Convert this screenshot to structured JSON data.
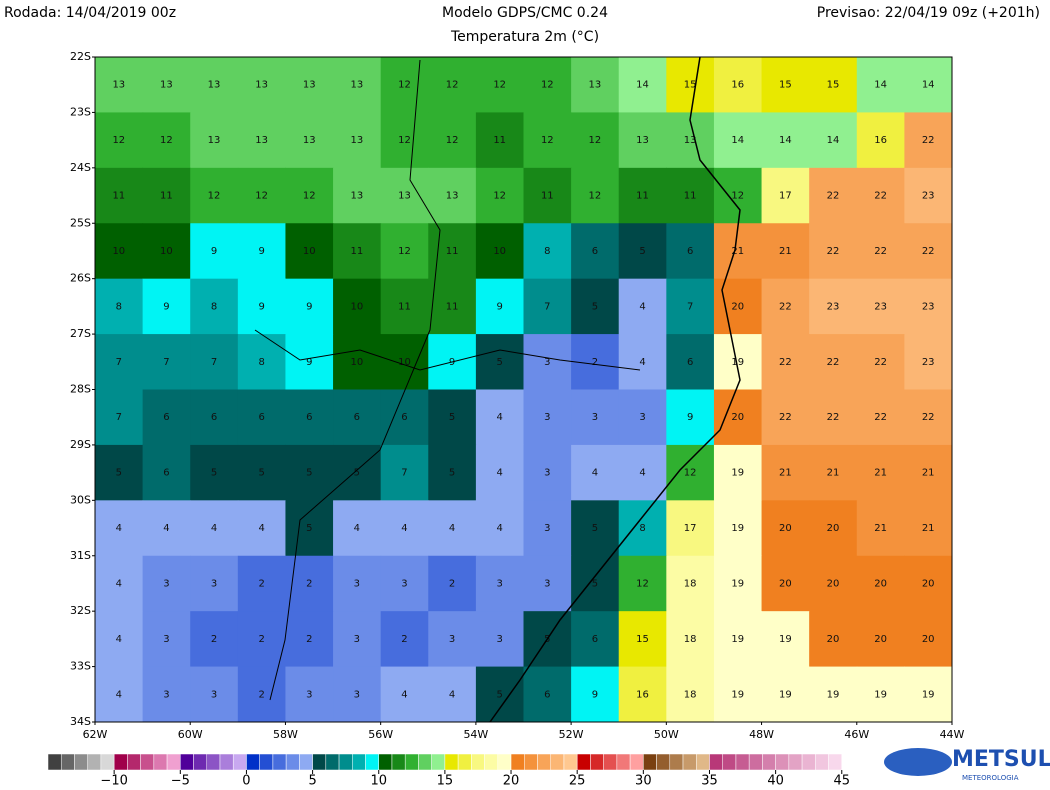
{
  "header_left": "Rodada: 14/04/2019 00z",
  "title": "Modelo GDPS/CMC 0.24",
  "subtitle": "Temperatura 2m (°C)",
  "header_right": "Previsao: 22/04/19 09z (+201h)",
  "lat_labels": [
    "22S",
    "23S",
    "24S",
    "25S",
    "26S",
    "27S",
    "28S",
    "29S",
    "30S",
    "31S",
    "32S",
    "33S",
    "34S"
  ],
  "lon_labels": [
    "62W",
    "60W",
    "58W",
    "56W",
    "54W",
    "52W",
    "50W",
    "48W",
    "46W",
    "44W"
  ],
  "grid": {
    "rows": [
      [
        13,
        13,
        13,
        13,
        13,
        13,
        12,
        12,
        12,
        12,
        13,
        14,
        15,
        16,
        15,
        15,
        14,
        14
      ],
      [
        12,
        12,
        13,
        13,
        13,
        13,
        12,
        12,
        11,
        12,
        12,
        13,
        13,
        14,
        14,
        14,
        16,
        22
      ],
      [
        11,
        11,
        12,
        12,
        12,
        13,
        13,
        13,
        12,
        11,
        12,
        11,
        11,
        12,
        17,
        22,
        22,
        23
      ],
      [
        10,
        10,
        9,
        9,
        10,
        11,
        12,
        11,
        10,
        8,
        6,
        5,
        6,
        21,
        21,
        22,
        22,
        22
      ],
      [
        8,
        9,
        8,
        9,
        9,
        10,
        11,
        11,
        9,
        7,
        5,
        4,
        7,
        20,
        22,
        23,
        23,
        23
      ],
      [
        7,
        7,
        7,
        8,
        9,
        10,
        10,
        9,
        5,
        3,
        2,
        4,
        6,
        19,
        22,
        22,
        22,
        23
      ],
      [
        7,
        6,
        6,
        6,
        6,
        6,
        6,
        5,
        4,
        3,
        3,
        3,
        9,
        20,
        22,
        22,
        22,
        22
      ],
      [
        5,
        6,
        5,
        5,
        5,
        5,
        7,
        5,
        4,
        3,
        4,
        4,
        12,
        19,
        21,
        21,
        21,
        21
      ],
      [
        4,
        4,
        4,
        4,
        5,
        4,
        4,
        4,
        4,
        3,
        5,
        8,
        17,
        19,
        20,
        20,
        21,
        21
      ],
      [
        4,
        3,
        3,
        2,
        2,
        3,
        3,
        2,
        3,
        3,
        5,
        12,
        18,
        19,
        20,
        20,
        20,
        20
      ],
      [
        4,
        3,
        2,
        2,
        2,
        3,
        2,
        3,
        3,
        5,
        6,
        15,
        18,
        19,
        19,
        20,
        20,
        20
      ],
      [
        4,
        3,
        3,
        2,
        3,
        3,
        4,
        4,
        5,
        6,
        9,
        16,
        18,
        19,
        19,
        19,
        19,
        19
      ]
    ]
  },
  "palette": [
    [
      -15,
      "#404040"
    ],
    [
      -11,
      "#d8d8d8"
    ],
    [
      -10,
      "#a0004a"
    ],
    [
      -6,
      "#f0a0d0"
    ],
    [
      -5,
      "#50009a"
    ],
    [
      -1,
      "#c8a8f0"
    ],
    [
      0,
      "#0030c8"
    ],
    [
      4,
      "#8eaaf2"
    ],
    [
      5,
      "#004848"
    ],
    [
      8,
      "#00b0b0"
    ],
    [
      9,
      "#00f4f4"
    ],
    [
      10,
      "#006000"
    ],
    [
      12,
      "#30b030"
    ],
    [
      14,
      "#90f090"
    ],
    [
      15,
      "#e8e800"
    ],
    [
      17,
      "#f8f880"
    ],
    [
      19,
      "#ffffc8"
    ],
    [
      20,
      "#f08020"
    ],
    [
      24,
      "#ffc890"
    ],
    [
      25,
      "#c80000"
    ],
    [
      29,
      "#ffa0a0"
    ],
    [
      30,
      "#7a4010"
    ],
    [
      34,
      "#e0b888"
    ],
    [
      35,
      "#b83878"
    ],
    [
      44,
      "#f8d8ec"
    ],
    [
      45,
      "#ffffff"
    ]
  ],
  "colorbar": {
    "range": [
      -15,
      46
    ],
    "ticks": [
      {
        "value": -10,
        "label": "−10"
      },
      {
        "value": -5,
        "label": "−5"
      },
      0,
      5,
      10,
      15,
      20,
      25,
      30,
      35,
      40,
      45
    ]
  },
  "logo": {
    "name": "METSUL",
    "tagline": "METEOROLOGIA"
  }
}
